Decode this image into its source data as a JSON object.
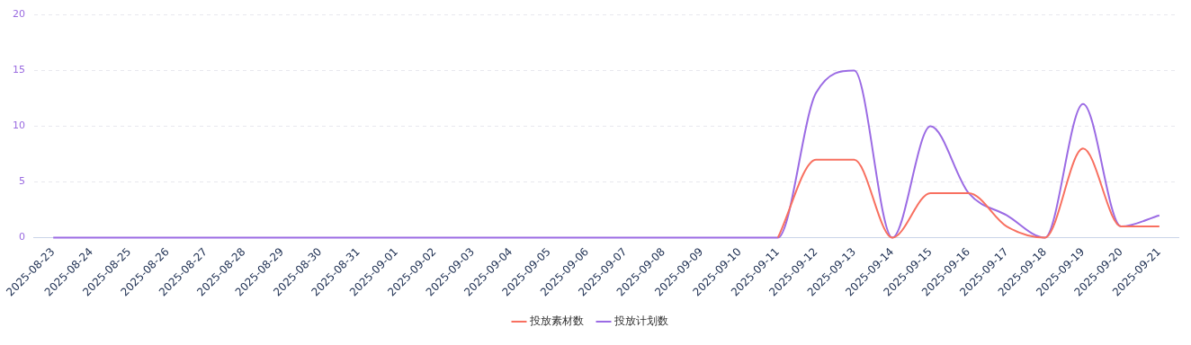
{
  "chart_data": {
    "type": "line",
    "categories": [
      "2025-08-23",
      "2025-08-24",
      "2025-08-25",
      "2025-08-26",
      "2025-08-27",
      "2025-08-28",
      "2025-08-29",
      "2025-08-30",
      "2025-08-31",
      "2025-09-01",
      "2025-09-02",
      "2025-09-03",
      "2025-09-04",
      "2025-09-05",
      "2025-09-06",
      "2025-09-07",
      "2025-09-08",
      "2025-09-09",
      "2025-09-10",
      "2025-09-11",
      "2025-09-12",
      "2025-09-13",
      "2025-09-14",
      "2025-09-15",
      "2025-09-16",
      "2025-09-17",
      "2025-09-18",
      "2025-09-19",
      "2025-09-20",
      "2025-09-21"
    ],
    "series": [
      {
        "name": "投放素材数",
        "color": "#f87060",
        "values": [
          null,
          null,
          null,
          null,
          null,
          null,
          null,
          null,
          null,
          null,
          null,
          null,
          null,
          null,
          null,
          null,
          null,
          null,
          null,
          0,
          7,
          7,
          0,
          4,
          4,
          1,
          0,
          8,
          1,
          1
        ]
      },
      {
        "name": "投放计划数",
        "color": "#9b6be4",
        "values": [
          0,
          0,
          0,
          0,
          0,
          0,
          0,
          0,
          0,
          0,
          0,
          0,
          0,
          0,
          0,
          0,
          0,
          0,
          0,
          0,
          13,
          15,
          0,
          10,
          4,
          2,
          0,
          12,
          1,
          2
        ]
      }
    ],
    "ylim": [
      0,
      20
    ],
    "yticks": [
      0,
      5,
      10,
      15,
      20
    ],
    "grid": "y",
    "legend": "bottom",
    "marker": "none",
    "line_style": "solid"
  }
}
